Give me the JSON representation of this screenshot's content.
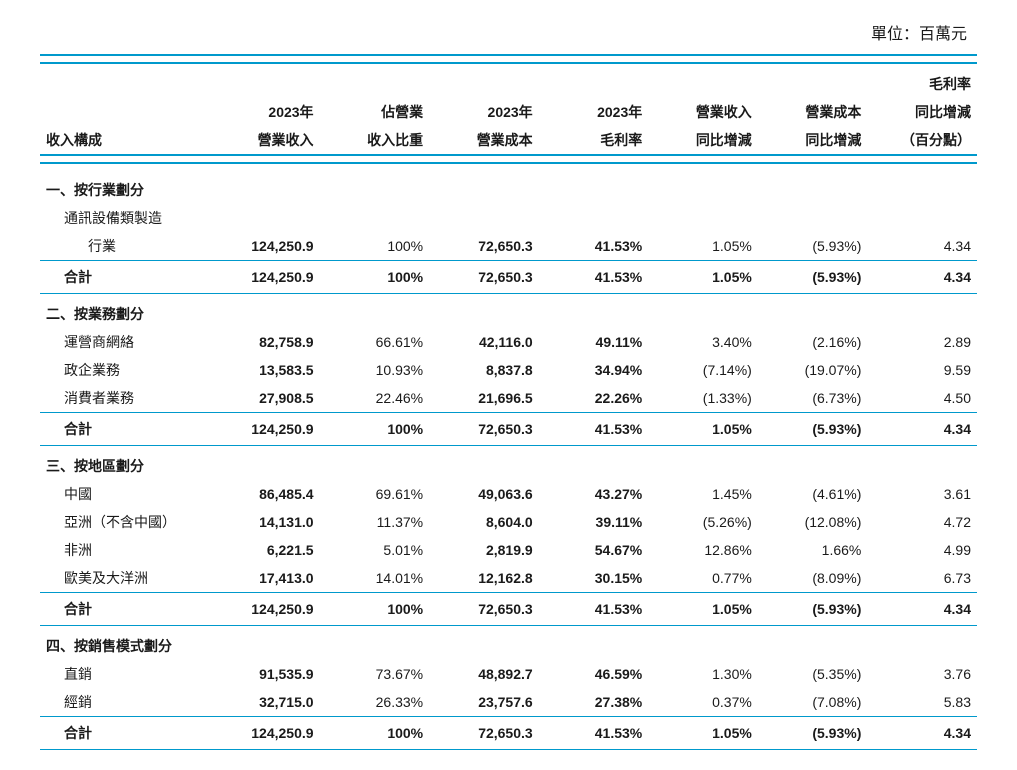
{
  "unit_label": "單位：百萬元",
  "headers": {
    "row_label": "收入構成",
    "col1_l1": "2023年",
    "col1_l2": "營業收入",
    "col2_l1": "佔營業",
    "col2_l2": "收入比重",
    "col3_l1": "2023年",
    "col3_l2": "營業成本",
    "col4_l1": "2023年",
    "col4_l2": "毛利率",
    "col5_l1": "營業收入",
    "col5_l2": "同比增減",
    "col6_l1": "營業成本",
    "col6_l2": "同比增減",
    "col7_l1": "毛利率",
    "col7_l2": "同比增減",
    "col7_l3": "（百分點）"
  },
  "sections": [
    {
      "title": "一、按行業劃分",
      "rows": [
        {
          "label_l1": "通訊設備類製造",
          "label_l2": "行業",
          "multi": true,
          "c1": "124,250.9",
          "c2": "100%",
          "c3": "72,650.3",
          "c4": "41.53%",
          "c5": "1.05%",
          "c6": "(5.93%)",
          "c7": "4.34"
        }
      ],
      "subtotal": {
        "label": "合計",
        "c1": "124,250.9",
        "c2": "100%",
        "c3": "72,650.3",
        "c4": "41.53%",
        "c5": "1.05%",
        "c6": "(5.93%)",
        "c7": "4.34"
      }
    },
    {
      "title": "二、按業務劃分",
      "rows": [
        {
          "label": "運營商網絡",
          "c1": "82,758.9",
          "c2": "66.61%",
          "c3": "42,116.0",
          "c4": "49.11%",
          "c5": "3.40%",
          "c6": "(2.16%)",
          "c7": "2.89"
        },
        {
          "label": "政企業務",
          "c1": "13,583.5",
          "c2": "10.93%",
          "c3": "8,837.8",
          "c4": "34.94%",
          "c5": "(7.14%)",
          "c6": "(19.07%)",
          "c7": "9.59"
        },
        {
          "label": "消費者業務",
          "c1": "27,908.5",
          "c2": "22.46%",
          "c3": "21,696.5",
          "c4": "22.26%",
          "c5": "(1.33%)",
          "c6": "(6.73%)",
          "c7": "4.50"
        }
      ],
      "subtotal": {
        "label": "合計",
        "c1": "124,250.9",
        "c2": "100%",
        "c3": "72,650.3",
        "c4": "41.53%",
        "c5": "1.05%",
        "c6": "(5.93%)",
        "c7": "4.34"
      }
    },
    {
      "title": "三、按地區劃分",
      "rows": [
        {
          "label": "中國",
          "c1": "86,485.4",
          "c2": "69.61%",
          "c3": "49,063.6",
          "c4": "43.27%",
          "c5": "1.45%",
          "c6": "(4.61%)",
          "c7": "3.61"
        },
        {
          "label": "亞洲（不含中國）",
          "c1": "14,131.0",
          "c2": "11.37%",
          "c3": "8,604.0",
          "c4": "39.11%",
          "c5": "(5.26%)",
          "c6": "(12.08%)",
          "c7": "4.72"
        },
        {
          "label": "非洲",
          "c1": "6,221.5",
          "c2": "5.01%",
          "c3": "2,819.9",
          "c4": "54.67%",
          "c5": "12.86%",
          "c6": "1.66%",
          "c7": "4.99"
        },
        {
          "label": "歐美及大洋洲",
          "c1": "17,413.0",
          "c2": "14.01%",
          "c3": "12,162.8",
          "c4": "30.15%",
          "c5": "0.77%",
          "c6": "(8.09%)",
          "c7": "6.73"
        }
      ],
      "subtotal": {
        "label": "合計",
        "c1": "124,250.9",
        "c2": "100%",
        "c3": "72,650.3",
        "c4": "41.53%",
        "c5": "1.05%",
        "c6": "(5.93%)",
        "c7": "4.34"
      }
    },
    {
      "title": "四、按銷售模式劃分",
      "rows": [
        {
          "label": "直銷",
          "c1": "91,535.9",
          "c2": "73.67%",
          "c3": "48,892.7",
          "c4": "46.59%",
          "c5": "1.30%",
          "c6": "(5.35%)",
          "c7": "3.76"
        },
        {
          "label": "經銷",
          "c1": "32,715.0",
          "c2": "26.33%",
          "c3": "23,757.6",
          "c4": "27.38%",
          "c5": "0.37%",
          "c6": "(7.08%)",
          "c7": "5.83"
        }
      ],
      "subtotal": {
        "label": "合計",
        "c1": "124,250.9",
        "c2": "100%",
        "c3": "72,650.3",
        "c4": "41.53%",
        "c5": "1.05%",
        "c6": "(5.93%)",
        "c7": "4.34"
      }
    }
  ],
  "style": {
    "rule_color": "#0099cc",
    "text_color": "#1a1a1a",
    "font_size_body": 14,
    "font_size_unit": 16
  }
}
